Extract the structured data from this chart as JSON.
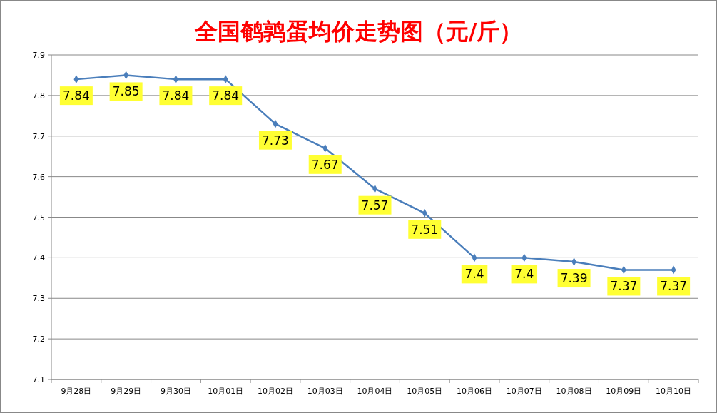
{
  "chart_data": {
    "type": "line",
    "title": "全国鹌鹑蛋均价走势图（元/斤）",
    "categories": [
      "9月28日",
      "9月29日",
      "9月30日",
      "10月01日",
      "10月02日",
      "10月03日",
      "10月04日",
      "10月05日",
      "10月06日",
      "10月07日",
      "10月08日",
      "10月09日",
      "10月10日"
    ],
    "series": [
      {
        "color": "#4a7ebb",
        "values": [
          7.84,
          7.85,
          7.84,
          7.84,
          7.73,
          7.67,
          7.57,
          7.51,
          7.4,
          7.4,
          7.39,
          7.37,
          7.37
        ]
      }
    ],
    "ylim": [
      7.1,
      7.9
    ],
    "yticks": [
      7.1,
      7.2,
      7.3,
      7.4,
      7.5,
      7.6,
      7.7,
      7.8,
      7.9
    ],
    "grid": "y",
    "marker": "diamond",
    "line_style": "solid",
    "data_labels": true
  }
}
